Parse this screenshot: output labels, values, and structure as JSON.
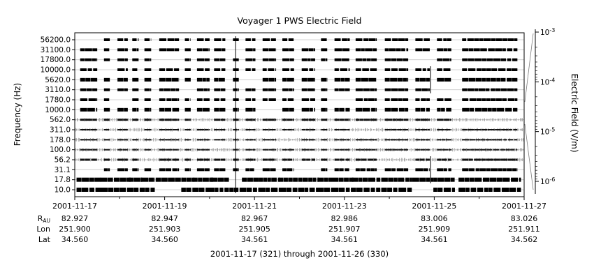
{
  "chart_data": {
    "type": "line",
    "title": "Voyager 1 PWS Electric Field",
    "xlabel": "",
    "ylabel": "Frequency (Hz)",
    "ylabel_right": "Electric Field (V/m)",
    "caption": "2001-11-17 (321) through 2001-11-26 (330)",
    "x_range": [
      "2001-11-17",
      "2001-11-27"
    ],
    "x_tick_labels": [
      "2001-11-17",
      "2001-11-19",
      "2001-11-21",
      "2001-11-23",
      "2001-11-25",
      "2001-11-27"
    ],
    "right_axis_ticks": [
      "10^-3",
      "10^-4",
      "10^-5",
      "10^-6"
    ],
    "channels": [
      {
        "freq_label": "56200.0",
        "freq_hz": 56200.0,
        "style": "blocks",
        "thickness": 4
      },
      {
        "freq_label": "31100.0",
        "freq_hz": 31100.0,
        "style": "blocks",
        "thickness": 4
      },
      {
        "freq_label": "17800.0",
        "freq_hz": 17800.0,
        "style": "blocks",
        "thickness": 4
      },
      {
        "freq_label": "10000.0",
        "freq_hz": 10000.0,
        "style": "blocks",
        "thickness": 4
      },
      {
        "freq_label": "5620.0",
        "freq_hz": 5620.0,
        "style": "blocks",
        "thickness": 5
      },
      {
        "freq_label": "3110.0",
        "freq_hz": 3110.0,
        "style": "blocks",
        "thickness": 4
      },
      {
        "freq_label": "1780.0",
        "freq_hz": 1780.0,
        "style": "blocks",
        "thickness": 4
      },
      {
        "freq_label": "1000.0",
        "freq_hz": 1000.0,
        "style": "blocks",
        "thickness": 5
      },
      {
        "freq_label": "562.0",
        "freq_hz": 562.0,
        "style": "noisy",
        "thickness": 3
      },
      {
        "freq_label": "311.0",
        "freq_hz": 311.0,
        "style": "noisy",
        "thickness": 2
      },
      {
        "freq_label": "178.0",
        "freq_hz": 178.0,
        "style": "noisy",
        "thickness": 2
      },
      {
        "freq_label": "100.0",
        "freq_hz": 100.0,
        "style": "noisy",
        "thickness": 2
      },
      {
        "freq_label": "56.2",
        "freq_hz": 56.2,
        "style": "noisy",
        "thickness": 3
      },
      {
        "freq_label": "31.1",
        "freq_hz": 31.1,
        "style": "blocks",
        "thickness": 4
      },
      {
        "freq_label": "17.8",
        "freq_hz": 17.8,
        "style": "blocks",
        "thickness": 6,
        "merge": true
      },
      {
        "freq_label": "10.0",
        "freq_hz": 10.0,
        "style": "blocks",
        "thickness": 6,
        "merge": true
      }
    ],
    "burst_intervals_frac": [
      [
        0.012,
        0.05
      ],
      [
        0.065,
        0.078
      ],
      [
        0.095,
        0.118
      ],
      [
        0.128,
        0.142
      ],
      [
        0.155,
        0.17
      ],
      [
        0.188,
        0.232
      ],
      [
        0.245,
        0.258
      ],
      [
        0.272,
        0.3
      ],
      [
        0.31,
        0.335
      ],
      [
        0.352,
        0.365
      ],
      [
        0.38,
        0.402
      ],
      [
        0.418,
        0.448
      ],
      [
        0.462,
        0.488
      ],
      [
        0.505,
        0.535
      ],
      [
        0.548,
        0.562
      ],
      [
        0.578,
        0.612
      ],
      [
        0.625,
        0.672
      ],
      [
        0.69,
        0.742
      ],
      [
        0.758,
        0.79
      ],
      [
        0.806,
        0.838
      ],
      [
        0.862,
        0.985
      ]
    ],
    "vertical_events": [
      {
        "x_frac": 0.358,
        "from_channel": 0,
        "to_channel": 15
      },
      {
        "x_frac": 0.792,
        "from_channel": 3,
        "to_channel": 5
      },
      {
        "x_frac": 0.792,
        "from_channel": 12,
        "to_channel": 14
      }
    ],
    "ephemeris": {
      "rows": [
        {
          "label": "R",
          "label_sub": "AU",
          "values": [
            "82.927",
            "82.947",
            "82.967",
            "82.986",
            "83.006",
            "83.026"
          ]
        },
        {
          "label": "Lon",
          "label_sub": "",
          "values": [
            "251.900",
            "251.903",
            "251.905",
            "251.907",
            "251.909",
            "251.911"
          ]
        },
        {
          "label": "Lat",
          "label_sub": "",
          "values": [
            "34.560",
            "34.560",
            "34.561",
            "34.561",
            "34.561",
            "34.562"
          ]
        }
      ]
    }
  }
}
